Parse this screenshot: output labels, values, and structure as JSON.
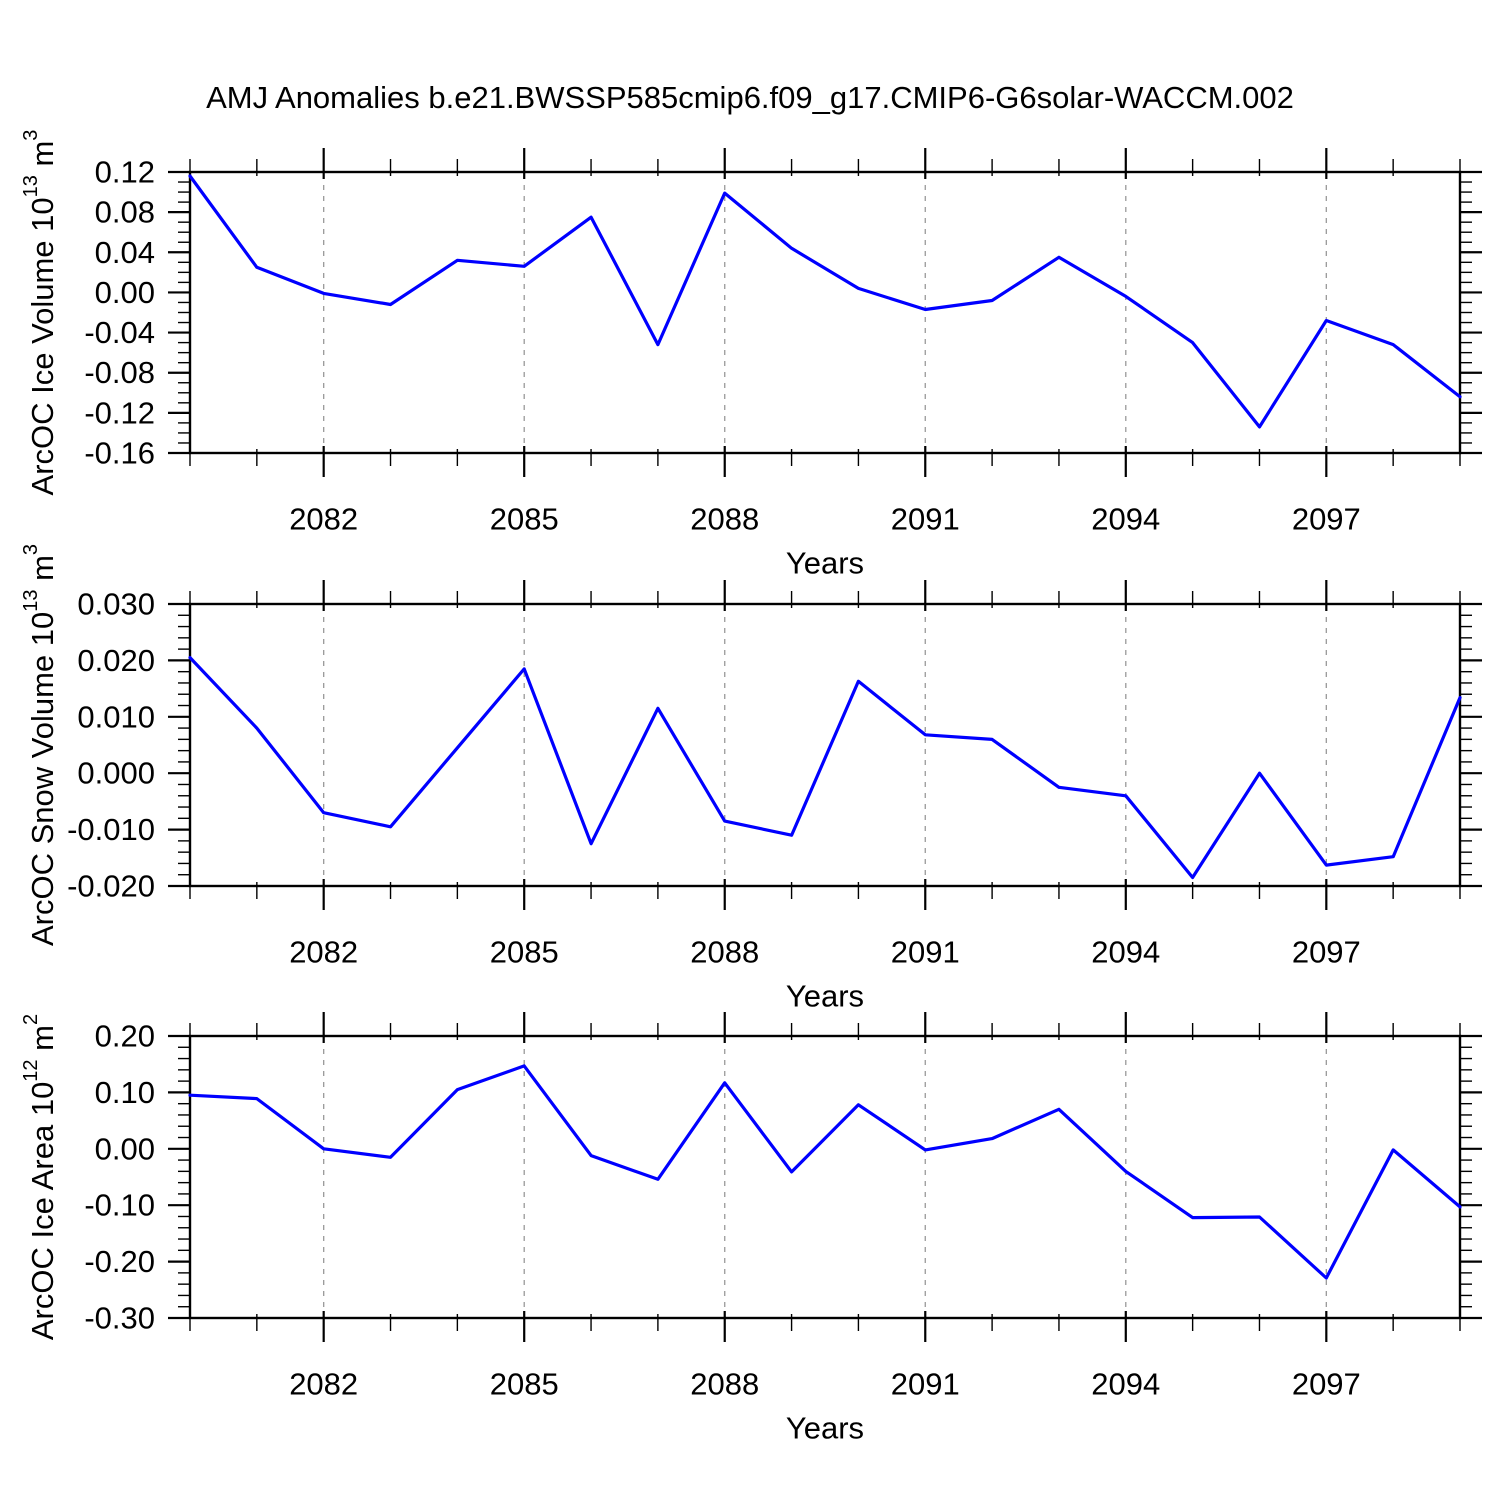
{
  "title": "AMJ Anomalies b.e21.BWSSP585cmip6.f09_g17.CMIP6-G6solar-WACCM.002",
  "line_color": "#0000ff",
  "grid_color": "#999999",
  "axis_color": "#000000",
  "chart_data": [
    {
      "type": "line",
      "id": "ice-volume",
      "ylabel": "ArcOC Ice Volume 10^13^ m^3^",
      "xlabel": "Years",
      "x": [
        2080,
        2081,
        2082,
        2083,
        2084,
        2085,
        2086,
        2087,
        2088,
        2089,
        2090,
        2091,
        2092,
        2093,
        2094,
        2095,
        2096,
        2097,
        2098,
        2099
      ],
      "values": [
        0.116,
        0.025,
        -0.001,
        -0.012,
        0.032,
        0.026,
        0.075,
        -0.052,
        0.099,
        0.044,
        0.004,
        -0.017,
        -0.008,
        0.035,
        -0.004,
        -0.05,
        -0.134,
        -0.028,
        -0.052,
        -0.104
      ],
      "xlim": [
        2080,
        2099
      ],
      "ylim": [
        -0.16,
        0.12
      ],
      "xticks": [
        2082,
        2085,
        2088,
        2091,
        2094,
        2097
      ],
      "xminor_step": 1,
      "ytick_values": [
        0.12,
        0.08,
        0.04,
        0.0,
        -0.04,
        -0.08,
        -0.12,
        -0.16
      ],
      "ytick_labels": [
        "0.12",
        "0.08",
        "0.04",
        "0.00",
        "-0.04",
        "-0.08",
        "-0.12",
        "-0.16"
      ],
      "yminor_step": 0.01,
      "grid": "x-dashed",
      "legend": "none"
    },
    {
      "type": "line",
      "id": "snow-volume",
      "ylabel": "ArcOC Snow Volume 10^13^ m^3^",
      "xlabel": "Years",
      "x": [
        2080,
        2081,
        2082,
        2083,
        2084,
        2085,
        2086,
        2087,
        2088,
        2089,
        2090,
        2091,
        2092,
        2093,
        2094,
        2095,
        2096,
        2097,
        2098,
        2099
      ],
      "values": [
        0.0205,
        0.008,
        -0.007,
        -0.0095,
        0.0045,
        0.0185,
        -0.0125,
        0.0115,
        -0.0085,
        -0.011,
        0.0163,
        0.0068,
        0.006,
        -0.0025,
        -0.004,
        -0.0185,
        0.0,
        -0.0163,
        -0.0148,
        0.0134
      ],
      "xlim": [
        2080,
        2099
      ],
      "ylim": [
        -0.02,
        0.03
      ],
      "xticks": [
        2082,
        2085,
        2088,
        2091,
        2094,
        2097
      ],
      "xminor_step": 1,
      "ytick_values": [
        0.03,
        0.02,
        0.01,
        0.0,
        -0.01,
        -0.02
      ],
      "ytick_labels": [
        "0.030",
        "0.020",
        "0.010",
        "0.000",
        "-0.010",
        "-0.020"
      ],
      "yminor_step": 0.002,
      "grid": "x-dashed",
      "legend": "none"
    },
    {
      "type": "line",
      "id": "ice-area",
      "ylabel": "ArcOC Ice Area 10^12^ m^2^",
      "xlabel": "Years",
      "x": [
        2080,
        2081,
        2082,
        2083,
        2084,
        2085,
        2086,
        2087,
        2088,
        2089,
        2090,
        2091,
        2092,
        2093,
        2094,
        2095,
        2096,
        2097,
        2098,
        2099
      ],
      "values": [
        0.095,
        0.089,
        0.0,
        -0.015,
        0.105,
        0.147,
        -0.012,
        -0.054,
        0.117,
        -0.041,
        0.078,
        -0.002,
        0.018,
        0.07,
        -0.04,
        -0.122,
        -0.121,
        -0.229,
        -0.002,
        -0.103
      ],
      "xlim": [
        2080,
        2099
      ],
      "ylim": [
        -0.3,
        0.2
      ],
      "xticks": [
        2082,
        2085,
        2088,
        2091,
        2094,
        2097
      ],
      "xminor_step": 1,
      "ytick_values": [
        0.2,
        0.1,
        0.0,
        -0.1,
        -0.2,
        -0.3
      ],
      "ytick_labels": [
        "0.20",
        "0.10",
        "0.00",
        "-0.10",
        "-0.20",
        "-0.30"
      ],
      "yminor_step": 0.02,
      "grid": "x-dashed",
      "legend": "none"
    }
  ]
}
